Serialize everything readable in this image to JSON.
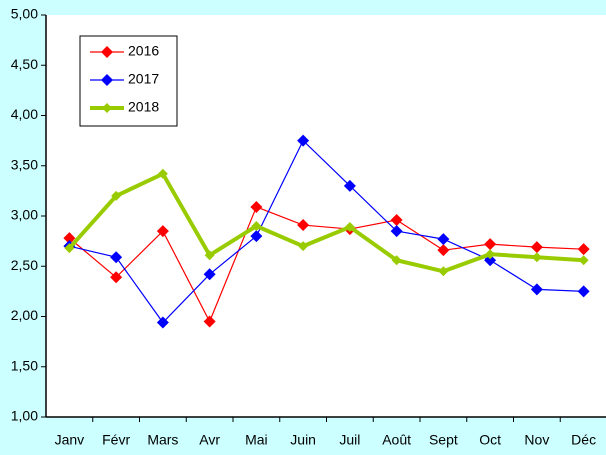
{
  "chart_data": {
    "type": "line",
    "categories": [
      "Janv",
      "Févr",
      "Mars",
      "Avr",
      "Mai",
      "Juin",
      "Juil",
      "Août",
      "Sept",
      "Oct",
      "Nov",
      "Déc"
    ],
    "series": [
      {
        "name": "2016",
        "color": "#ff0000",
        "values": [
          2.78,
          2.39,
          2.85,
          1.95,
          3.09,
          2.91,
          2.87,
          2.96,
          2.66,
          2.72,
          2.69,
          2.67
        ]
      },
      {
        "name": "2017",
        "color": "#0000ff",
        "values": [
          2.7,
          2.59,
          1.94,
          2.42,
          2.8,
          3.75,
          3.3,
          2.85,
          2.77,
          2.56,
          2.27,
          2.25
        ]
      },
      {
        "name": "2018",
        "color": "#99cc00",
        "values": [
          2.68,
          3.2,
          3.42,
          2.61,
          2.9,
          2.7,
          2.89,
          2.56,
          2.45,
          2.62,
          2.59,
          2.56
        ]
      }
    ],
    "ylim": [
      1,
      5
    ],
    "yticks": [
      {
        "value": 1,
        "label": "1,00"
      },
      {
        "value": 1.5,
        "label": "1,50"
      },
      {
        "value": 2,
        "label": "2,00"
      },
      {
        "value": 2.5,
        "label": "2,50"
      },
      {
        "value": 3,
        "label": "3,00"
      },
      {
        "value": 3.5,
        "label": "3,50"
      },
      {
        "value": 4,
        "label": "4,00"
      },
      {
        "value": 4.5,
        "label": "4,50"
      },
      {
        "value": 5,
        "label": "5,00"
      }
    ],
    "grid": false,
    "legend": "upper left"
  }
}
